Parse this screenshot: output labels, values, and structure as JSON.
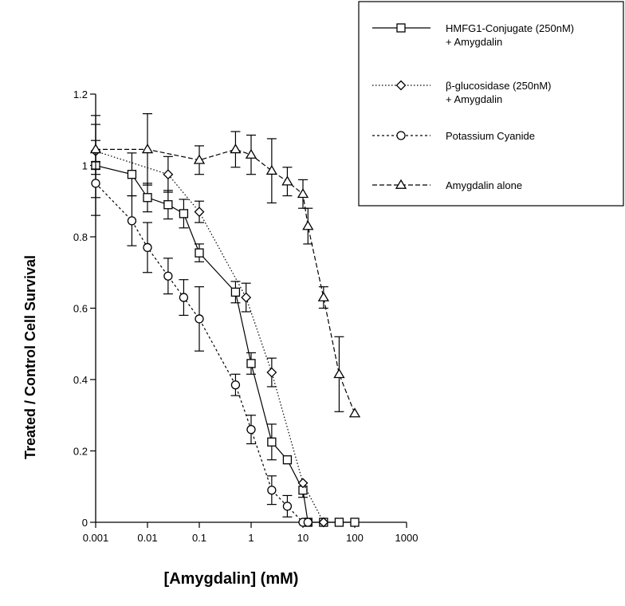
{
  "chart_data": {
    "type": "line",
    "xlabel": "[Amygdalin] (mM)",
    "ylabel": "Treated / Control Cell Survival",
    "x_scale": "log",
    "xlim": [
      0.001,
      1000
    ],
    "ylim": [
      0,
      1.2
    ],
    "x_ticks": [
      0.001,
      0.01,
      0.1,
      1,
      10,
      100,
      1000
    ],
    "x_tick_labels": [
      "0.001",
      "0.01",
      "0.1",
      "1",
      "10",
      "100",
      "1000"
    ],
    "y_ticks": [
      0,
      0.2,
      0.4,
      0.6,
      0.8,
      1,
      1.2
    ],
    "y_tick_labels": [
      "0",
      "0.2",
      "0.4",
      "0.6",
      "0.8",
      "1",
      "1.2"
    ],
    "grid": false,
    "legend_position": "top-right",
    "series": [
      {
        "name": "HMFG1-Conjugate (250nM) + Amygdalin",
        "legend_lines": [
          "HMFG1-Conjugate (250nM)",
          "+ Amygdalin"
        ],
        "marker": "square",
        "line_style": "solid",
        "points": [
          {
            "x": 0.001,
            "y": 1.0,
            "err": 0.14
          },
          {
            "x": 0.005,
            "y": 0.975,
            "err": 0.06
          },
          {
            "x": 0.01,
            "y": 0.91,
            "err": 0.04
          },
          {
            "x": 0.025,
            "y": 0.89,
            "err": 0.04
          },
          {
            "x": 0.05,
            "y": 0.865,
            "err": 0.04
          },
          {
            "x": 0.1,
            "y": 0.755,
            "err": 0.025
          },
          {
            "x": 0.5,
            "y": 0.645,
            "err": 0.03
          },
          {
            "x": 1,
            "y": 0.445,
            "err": 0.03
          },
          {
            "x": 2.5,
            "y": 0.225,
            "err": 0.05
          },
          {
            "x": 5,
            "y": 0.175,
            "err": 0
          },
          {
            "x": 10,
            "y": 0.09,
            "err": 0.02
          },
          {
            "x": 12.5,
            "y": 0.0,
            "err": 0
          },
          {
            "x": 25,
            "y": 0.0,
            "err": 0
          },
          {
            "x": 50,
            "y": 0.0,
            "err": 0
          },
          {
            "x": 100,
            "y": 0.0,
            "err": 0
          }
        ]
      },
      {
        "name": "β-glucosidase (250nM) + Amygdalin",
        "legend_lines": [
          "β-glucosidase (250nM)",
          "+ Amygdalin"
        ],
        "marker": "diamond",
        "line_style": "dotted",
        "points": [
          {
            "x": 0.001,
            "y": 1.04,
            "err": 0.03
          },
          {
            "x": 0.025,
            "y": 0.975,
            "err": 0.05
          },
          {
            "x": 0.1,
            "y": 0.87,
            "err": 0.03
          },
          {
            "x": 0.8,
            "y": 0.63,
            "err": 0.04
          },
          {
            "x": 2.5,
            "y": 0.42,
            "err": 0.04
          },
          {
            "x": 10,
            "y": 0.11,
            "err": 0
          },
          {
            "x": 25,
            "y": 0.0,
            "err": 0
          }
        ]
      },
      {
        "name": "Potassium Cyanide",
        "legend_lines": [
          "Potassium Cyanide"
        ],
        "marker": "circle",
        "line_style": "dashed-short",
        "points": [
          {
            "x": 0.001,
            "y": 0.95,
            "err": 0.04
          },
          {
            "x": 0.005,
            "y": 0.845,
            "err": 0.07
          },
          {
            "x": 0.01,
            "y": 0.77,
            "err": 0.07
          },
          {
            "x": 0.025,
            "y": 0.69,
            "err": 0.05
          },
          {
            "x": 0.05,
            "y": 0.63,
            "err": 0.05
          },
          {
            "x": 0.1,
            "y": 0.57,
            "err": 0.09
          },
          {
            "x": 0.5,
            "y": 0.385,
            "err": 0.03
          },
          {
            "x": 1,
            "y": 0.26,
            "err": 0.04
          },
          {
            "x": 2.5,
            "y": 0.09,
            "err": 0.04
          },
          {
            "x": 5,
            "y": 0.045,
            "err": 0.03
          },
          {
            "x": 10,
            "y": 0.0,
            "err": 0
          },
          {
            "x": 12.5,
            "y": 0.0,
            "err": 0
          }
        ]
      },
      {
        "name": "Amygdalin alone",
        "legend_lines": [
          "Amygdalin alone"
        ],
        "marker": "triangle",
        "line_style": "dashed",
        "points": [
          {
            "x": 0.001,
            "y": 1.045,
            "err": 0.07
          },
          {
            "x": 0.01,
            "y": 1.045,
            "err": 0.1
          },
          {
            "x": 0.1,
            "y": 1.015,
            "err": 0.04
          },
          {
            "x": 0.5,
            "y": 1.045,
            "err": 0.05
          },
          {
            "x": 1,
            "y": 1.03,
            "err": 0.055
          },
          {
            "x": 2.5,
            "y": 0.985,
            "err": 0.09
          },
          {
            "x": 5,
            "y": 0.955,
            "err": 0.04
          },
          {
            "x": 10,
            "y": 0.92,
            "err": 0.04
          },
          {
            "x": 12.5,
            "y": 0.83,
            "err": 0.05
          },
          {
            "x": 25,
            "y": 0.63,
            "err": 0.03
          },
          {
            "x": 50,
            "y": 0.415,
            "err": 0.105
          },
          {
            "x": 100,
            "y": 0.305,
            "err": 0
          }
        ]
      }
    ]
  }
}
